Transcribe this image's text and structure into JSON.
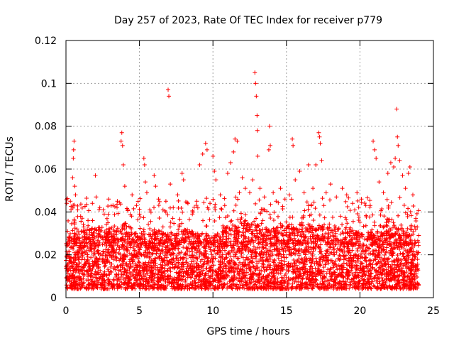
{
  "chart_data": {
    "type": "scatter",
    "title": "Day 257 of 2023, Rate Of TEC Index for receiver p779",
    "xlabel": "GPS time / hours",
    "ylabel": "ROTI / TECUs",
    "xlim": [
      0,
      25
    ],
    "ylim": [
      0,
      0.12
    ],
    "x_ticks": [
      0,
      5,
      10,
      15,
      20,
      25
    ],
    "x_tick_labels": [
      "0",
      "5",
      "10",
      "15",
      "20",
      "25"
    ],
    "y_ticks": [
      0,
      0.02,
      0.04,
      0.06,
      0.08,
      0.1,
      0.12
    ],
    "y_tick_labels": [
      "0",
      "0.02",
      "0.04",
      "0.06",
      "0.08",
      "0.1",
      "0.12"
    ],
    "grid": true,
    "marker": "plus",
    "marker_color": "#ff0000",
    "series": [
      {
        "points": [
          [
            0.05,
            0.044
          ],
          [
            0.1,
            0.031
          ],
          [
            0.3,
            0.045
          ],
          [
            0.45,
            0.056
          ],
          [
            0.5,
            0.065
          ],
          [
            0.52,
            0.069
          ],
          [
            0.55,
            0.073
          ],
          [
            0.6,
            0.052
          ],
          [
            0.65,
            0.048
          ],
          [
            0.8,
            0.041
          ],
          [
            1.0,
            0.038
          ],
          [
            1.2,
            0.033
          ],
          [
            1.5,
            0.036
          ],
          [
            1.8,
            0.044
          ],
          [
            2.0,
            0.057
          ],
          [
            2.05,
            0.047
          ],
          [
            2.3,
            0.042
          ],
          [
            2.6,
            0.039
          ],
          [
            2.9,
            0.046
          ],
          [
            3.2,
            0.043
          ],
          [
            3.5,
            0.045
          ],
          [
            3.75,
            0.073
          ],
          [
            3.8,
            0.077
          ],
          [
            3.85,
            0.071
          ],
          [
            3.9,
            0.062
          ],
          [
            4.0,
            0.052
          ],
          [
            4.2,
            0.041
          ],
          [
            4.5,
            0.048
          ],
          [
            4.8,
            0.043
          ],
          [
            5.0,
            0.039
          ],
          [
            5.3,
            0.065
          ],
          [
            5.35,
            0.062
          ],
          [
            5.4,
            0.054
          ],
          [
            5.5,
            0.049
          ],
          [
            5.7,
            0.041
          ],
          [
            6.0,
            0.057
          ],
          [
            6.1,
            0.052
          ],
          [
            6.3,
            0.046
          ],
          [
            6.6,
            0.041
          ],
          [
            6.8,
            0.045
          ],
          [
            6.95,
            0.097
          ],
          [
            7.0,
            0.094
          ],
          [
            7.1,
            0.053
          ],
          [
            7.3,
            0.042
          ],
          [
            7.6,
            0.048
          ],
          [
            7.9,
            0.058
          ],
          [
            8.0,
            0.055
          ],
          [
            8.3,
            0.044
          ],
          [
            8.6,
            0.039
          ],
          [
            8.9,
            0.045
          ],
          [
            9.1,
            0.062
          ],
          [
            9.3,
            0.067
          ],
          [
            9.5,
            0.072
          ],
          [
            9.6,
            0.069
          ],
          [
            9.8,
            0.044
          ],
          [
            10.0,
            0.066
          ],
          [
            10.1,
            0.059
          ],
          [
            10.2,
            0.055
          ],
          [
            10.5,
            0.048
          ],
          [
            10.8,
            0.043
          ],
          [
            11.0,
            0.058
          ],
          [
            11.2,
            0.063
          ],
          [
            11.4,
            0.068
          ],
          [
            11.5,
            0.074
          ],
          [
            11.65,
            0.073
          ],
          [
            11.8,
            0.049
          ],
          [
            12.0,
            0.056
          ],
          [
            12.2,
            0.051
          ],
          [
            12.5,
            0.049
          ],
          [
            12.7,
            0.055
          ],
          [
            12.85,
            0.105
          ],
          [
            12.9,
            0.1
          ],
          [
            12.95,
            0.094
          ],
          [
            13.0,
            0.085
          ],
          [
            13.02,
            0.078
          ],
          [
            13.05,
            0.066
          ],
          [
            13.2,
            0.051
          ],
          [
            13.5,
            0.047
          ],
          [
            13.8,
            0.069
          ],
          [
            13.85,
            0.08
          ],
          [
            13.9,
            0.071
          ],
          [
            14.1,
            0.049
          ],
          [
            14.3,
            0.045
          ],
          [
            14.6,
            0.051
          ],
          [
            14.9,
            0.046
          ],
          [
            15.2,
            0.048
          ],
          [
            15.4,
            0.074
          ],
          [
            15.45,
            0.071
          ],
          [
            15.6,
            0.055
          ],
          [
            15.9,
            0.059
          ],
          [
            16.2,
            0.049
          ],
          [
            16.5,
            0.062
          ],
          [
            16.8,
            0.051
          ],
          [
            17.0,
            0.062
          ],
          [
            17.2,
            0.077
          ],
          [
            17.25,
            0.075
          ],
          [
            17.3,
            0.072
          ],
          [
            17.4,
            0.064
          ],
          [
            17.7,
            0.049
          ],
          [
            18.0,
            0.053
          ],
          [
            18.4,
            0.047
          ],
          [
            18.8,
            0.051
          ],
          [
            19.1,
            0.048
          ],
          [
            19.5,
            0.044
          ],
          [
            19.8,
            0.049
          ],
          [
            20.1,
            0.046
          ],
          [
            20.4,
            0.043
          ],
          [
            20.7,
            0.043
          ],
          [
            20.9,
            0.073
          ],
          [
            21.0,
            0.069
          ],
          [
            21.1,
            0.065
          ],
          [
            21.3,
            0.054
          ],
          [
            21.6,
            0.049
          ],
          [
            21.9,
            0.058
          ],
          [
            22.1,
            0.063
          ],
          [
            22.3,
            0.061
          ],
          [
            22.4,
            0.065
          ],
          [
            22.5,
            0.088
          ],
          [
            22.55,
            0.075
          ],
          [
            22.6,
            0.071
          ],
          [
            22.7,
            0.064
          ],
          [
            22.9,
            0.057
          ],
          [
            23.1,
            0.051
          ],
          [
            23.3,
            0.058
          ],
          [
            23.4,
            0.061
          ],
          [
            23.6,
            0.048
          ],
          [
            23.8,
            0.037
          ],
          [
            23.9,
            0.033
          ],
          [
            24.0,
            0.029
          ]
        ]
      }
    ],
    "dense_band": {
      "x_range": [
        0,
        24
      ],
      "y_floor": 0.004,
      "y_typical_upper": 0.03,
      "description_values_by_hour": [
        [
          0,
          0.026
        ],
        [
          1,
          0.027
        ],
        [
          2,
          0.03
        ],
        [
          3,
          0.029
        ],
        [
          4,
          0.031
        ],
        [
          5,
          0.025
        ],
        [
          6,
          0.028
        ],
        [
          7,
          0.026
        ],
        [
          8,
          0.028
        ],
        [
          9,
          0.027
        ],
        [
          10,
          0.025
        ],
        [
          11,
          0.03
        ],
        [
          12,
          0.031
        ],
        [
          13,
          0.03
        ],
        [
          14,
          0.028
        ],
        [
          15,
          0.03
        ],
        [
          16,
          0.031
        ],
        [
          17,
          0.03
        ],
        [
          18,
          0.03
        ],
        [
          19,
          0.029
        ],
        [
          20,
          0.026
        ],
        [
          21,
          0.027
        ],
        [
          22,
          0.034
        ],
        [
          23,
          0.028
        ],
        [
          24,
          0.022
        ]
      ]
    }
  }
}
